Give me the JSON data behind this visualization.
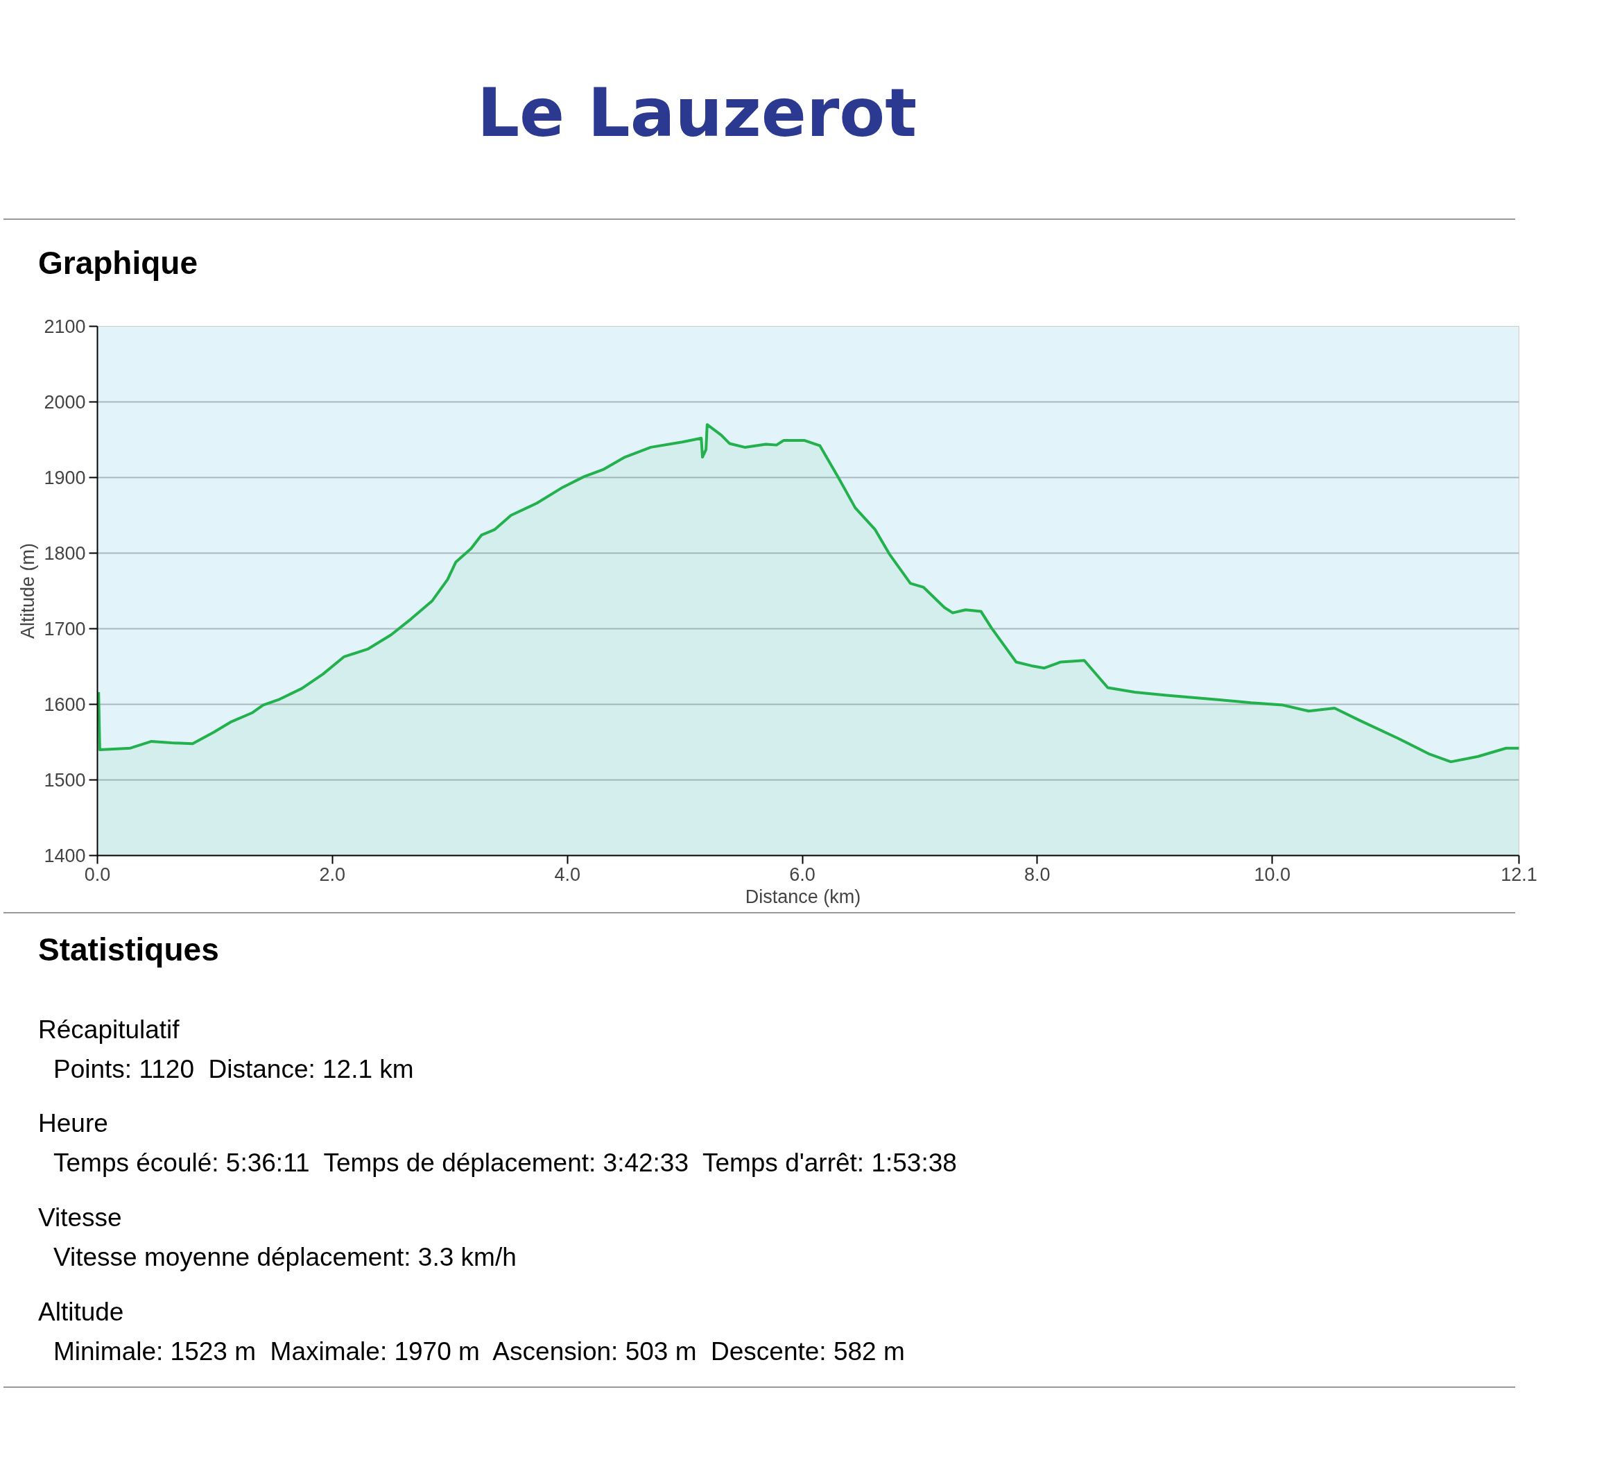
{
  "chart_data": {
    "type": "area",
    "title": "Le Lauzerot",
    "subtitle": "Graphique",
    "xlabel": "Distance   (km)",
    "ylabel": "Altitude (m)",
    "x": [
      0.01,
      0.02,
      0.28,
      0.46,
      0.63,
      0.81,
      0.99,
      1.14,
      1.32,
      1.41,
      1.54,
      1.74,
      1.92,
      2.1,
      2.3,
      2.5,
      2.67,
      2.85,
      2.98,
      3.05,
      3.18,
      3.27,
      3.38,
      3.52,
      3.74,
      3.96,
      4.14,
      4.31,
      4.49,
      4.71,
      4.98,
      5.14,
      5.15,
      5.18,
      5.19,
      5.31,
      5.38,
      5.51,
      5.69,
      5.78,
      5.84,
      6.02,
      6.15,
      6.31,
      6.45,
      6.62,
      6.74,
      6.92,
      7.03,
      7.21,
      7.28,
      7.39,
      7.52,
      7.61,
      7.82,
      7.95,
      8.06,
      8.2,
      8.4,
      8.6,
      8.83,
      9.1,
      9.55,
      9.82,
      10.09,
      10.31,
      10.53,
      10.74,
      11.07,
      11.34,
      11.52,
      11.75,
      11.99,
      12.1
    ],
    "series": [
      {
        "color": "#22b14c",
        "values": [
          1616,
          1540,
          1542,
          1551,
          1549,
          1548,
          1563,
          1577,
          1589,
          1599,
          1606,
          1621,
          1640,
          1663,
          1673,
          1692,
          1713,
          1737,
          1765,
          1788,
          1806,
          1824,
          1831,
          1850,
          1866,
          1887,
          1901,
          1911,
          1927,
          1940,
          1947,
          1952,
          1927,
          1937,
          1970,
          1956,
          1945,
          1940,
          1944,
          1943,
          1949,
          1949,
          1942,
          1899,
          1860,
          1831,
          1799,
          1760,
          1755,
          1728,
          1721,
          1725,
          1723,
          1701,
          1656,
          1651,
          1648,
          1656,
          1658,
          1622,
          1616,
          1612,
          1606,
          1602,
          1599,
          1591,
          1595,
          1579,
          1555,
          1534,
          1524,
          1531,
          1542,
          1542
        ]
      }
    ],
    "xlim": [
      0,
      12.1
    ],
    "xticks": [
      {
        "value": 0,
        "label": "0.0"
      },
      {
        "value": 2,
        "label": "2.0"
      },
      {
        "value": 4,
        "label": "4.0"
      },
      {
        "value": 6,
        "label": "6.0"
      },
      {
        "value": 8,
        "label": "8.0"
      },
      {
        "value": 10,
        "label": "10.0"
      },
      {
        "value": 12.1,
        "label": "12.1"
      }
    ],
    "ylim": [
      1400,
      2100
    ],
    "yticks": [
      1400,
      1500,
      1600,
      1700,
      1800,
      1900,
      2000,
      2100
    ],
    "grid": "y",
    "marker": "none",
    "line_style": "solid",
    "annotations": [
      "Statistiques",
      "Récapitulatif",
      "Points: 1120  Distance: 12.1 km",
      "Heure",
      "Temps écoulé: 5:36:11  Temps de déplacement: 3:42:33  Temps d'arrêt: 1:53:38",
      "Vitesse",
      "Vitesse moyenne déplacement: 3.3 km/h",
      "Altitude",
      "Minimale: 1523 m  Maximale: 1970 m  Ascension: 503 m  Descente: 582 m"
    ]
  }
}
